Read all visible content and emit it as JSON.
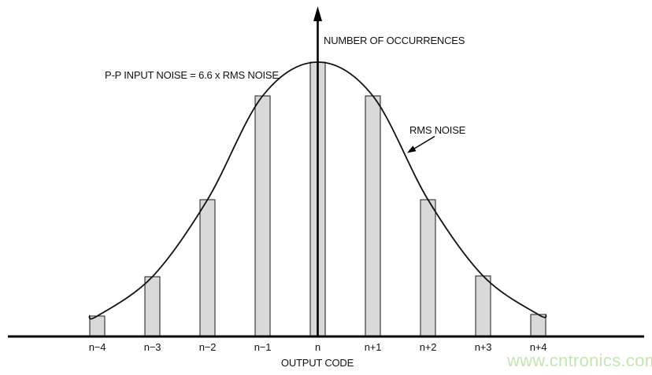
{
  "chart_data": {
    "type": "bar",
    "subtype": "histogram-with-gaussian-overlay",
    "title": "",
    "categories": [
      "n−4",
      "n−3",
      "n−2",
      "n−1",
      "n",
      "n+1",
      "n+2",
      "n+3",
      "n+4"
    ],
    "values": [
      0.072,
      0.216,
      0.497,
      0.877,
      1.0,
      0.877,
      0.497,
      0.218,
      0.078
    ],
    "values_note": "relative number of occurrences, peak normalized to 1 (y-axis has no numeric ticks)",
    "xlabel": "OUTPUT CODE",
    "ylabel": "NUMBER OF OCCURRENCES",
    "ylim": [
      0,
      1.08
    ],
    "grid": false,
    "legend": false,
    "overlay_curve": "gaussian bell curve passing through bar tops"
  },
  "annotations": {
    "pp_input_noise": "P-P INPUT NOISE = 6.6 x RMS NOISE",
    "rms_noise": "RMS NOISE"
  },
  "watermark": {
    "text": "www.cntronics.com",
    "color": "#c5e5b2"
  },
  "colors": {
    "background": "#ffffff",
    "bar_fill": "#d9d9d9",
    "bar_stroke": "#1a1a1a",
    "curve": "#111111",
    "axis": "#000000",
    "text": "#111111"
  }
}
